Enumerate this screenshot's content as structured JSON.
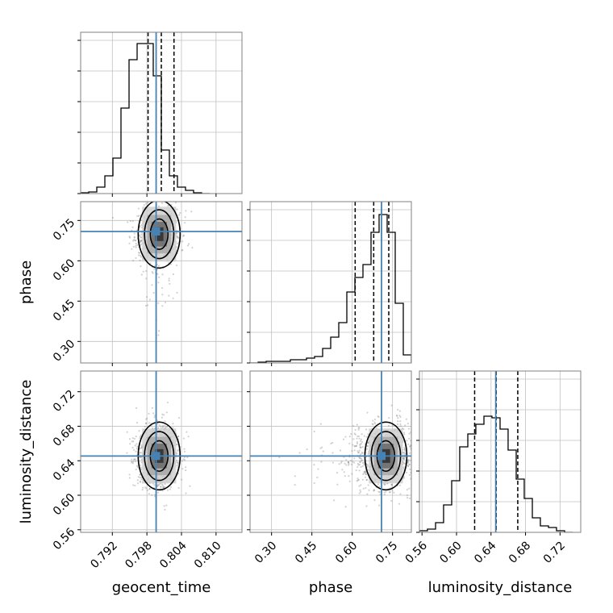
{
  "chart_data": {
    "type": "corner",
    "parameters": [
      "geocent_time",
      "phase",
      "luminosity_distance"
    ],
    "axis_labels": {
      "x": [
        "geocent_time",
        "phase",
        "luminosity_distance"
      ],
      "y": [
        "phase",
        "luminosity_distance"
      ]
    },
    "ranges": {
      "geocent_time": [
        0.7865,
        0.8145
      ],
      "phase": [
        0.22,
        0.82
      ],
      "luminosity_distance": [
        0.557,
        0.744
      ]
    },
    "ticks": {
      "geocent_time": [
        "0.792",
        "0.798",
        "0.804",
        "0.810"
      ],
      "phase": [
        "0.30",
        "0.45",
        "0.60",
        "0.75"
      ],
      "luminosity_distance": [
        "0.56",
        "0.60",
        "0.64",
        "0.68",
        "0.72"
      ]
    },
    "truths": {
      "geocent_time": 0.7996,
      "phase": 0.709,
      "luminosity_distance": 0.6455
    },
    "quantiles": {
      "geocent_time": [
        0.7982,
        0.8005,
        0.8027
      ],
      "phase": [
        0.611,
        0.68,
        0.736
      ],
      "luminosity_distance": [
        0.621,
        0.646,
        0.671
      ]
    },
    "histograms": {
      "geocent_time": {
        "edges": [
          0.7865,
          0.7879,
          0.7893,
          0.7907,
          0.7921,
          0.7935,
          0.7949,
          0.7963,
          0.7977,
          0.7991,
          0.8005,
          0.8019,
          0.8033,
          0.8047,
          0.8061,
          0.8075,
          0.8089
        ],
        "counts": [
          0.005,
          0.01,
          0.04,
          0.11,
          0.22,
          0.53,
          0.83,
          0.93,
          0.93,
          0.73,
          0.27,
          0.11,
          0.04,
          0.02,
          0.005,
          0.0
        ]
      },
      "phase": {
        "edges": [
          0.22,
          0.25,
          0.28,
          0.31,
          0.34,
          0.37,
          0.4,
          0.43,
          0.46,
          0.49,
          0.52,
          0.55,
          0.58,
          0.61,
          0.64,
          0.67,
          0.7,
          0.73,
          0.76,
          0.79,
          0.82
        ],
        "counts": [
          0.0,
          0.005,
          0.01,
          0.01,
          0.01,
          0.02,
          0.02,
          0.03,
          0.04,
          0.09,
          0.16,
          0.25,
          0.44,
          0.53,
          0.61,
          0.81,
          0.92,
          0.81,
          0.37,
          0.05
        ]
      },
      "luminosity_distance": {
        "edges": [
          0.557,
          0.5663,
          0.5757,
          0.585,
          0.5944,
          0.6037,
          0.6131,
          0.6224,
          0.6318,
          0.6411,
          0.6505,
          0.6598,
          0.6692,
          0.6785,
          0.6879,
          0.6972,
          0.7066,
          0.7159,
          0.7253,
          0.7346
        ],
        "counts": [
          0.01,
          0.02,
          0.06,
          0.17,
          0.32,
          0.53,
          0.61,
          0.67,
          0.72,
          0.71,
          0.64,
          0.51,
          0.33,
          0.21,
          0.09,
          0.04,
          0.03,
          0.01,
          0.0
        ]
      }
    },
    "contour_levels": [
      "0.5",
      "1.0",
      "1.5",
      "2.0"
    ],
    "grid": true,
    "colors": {
      "truth": "#4682b4",
      "hist_line": "#000000",
      "quantile_line": "#000000",
      "samples": "#7f7f7f",
      "grid": "#c0c0c0",
      "frame": "#808080"
    }
  }
}
